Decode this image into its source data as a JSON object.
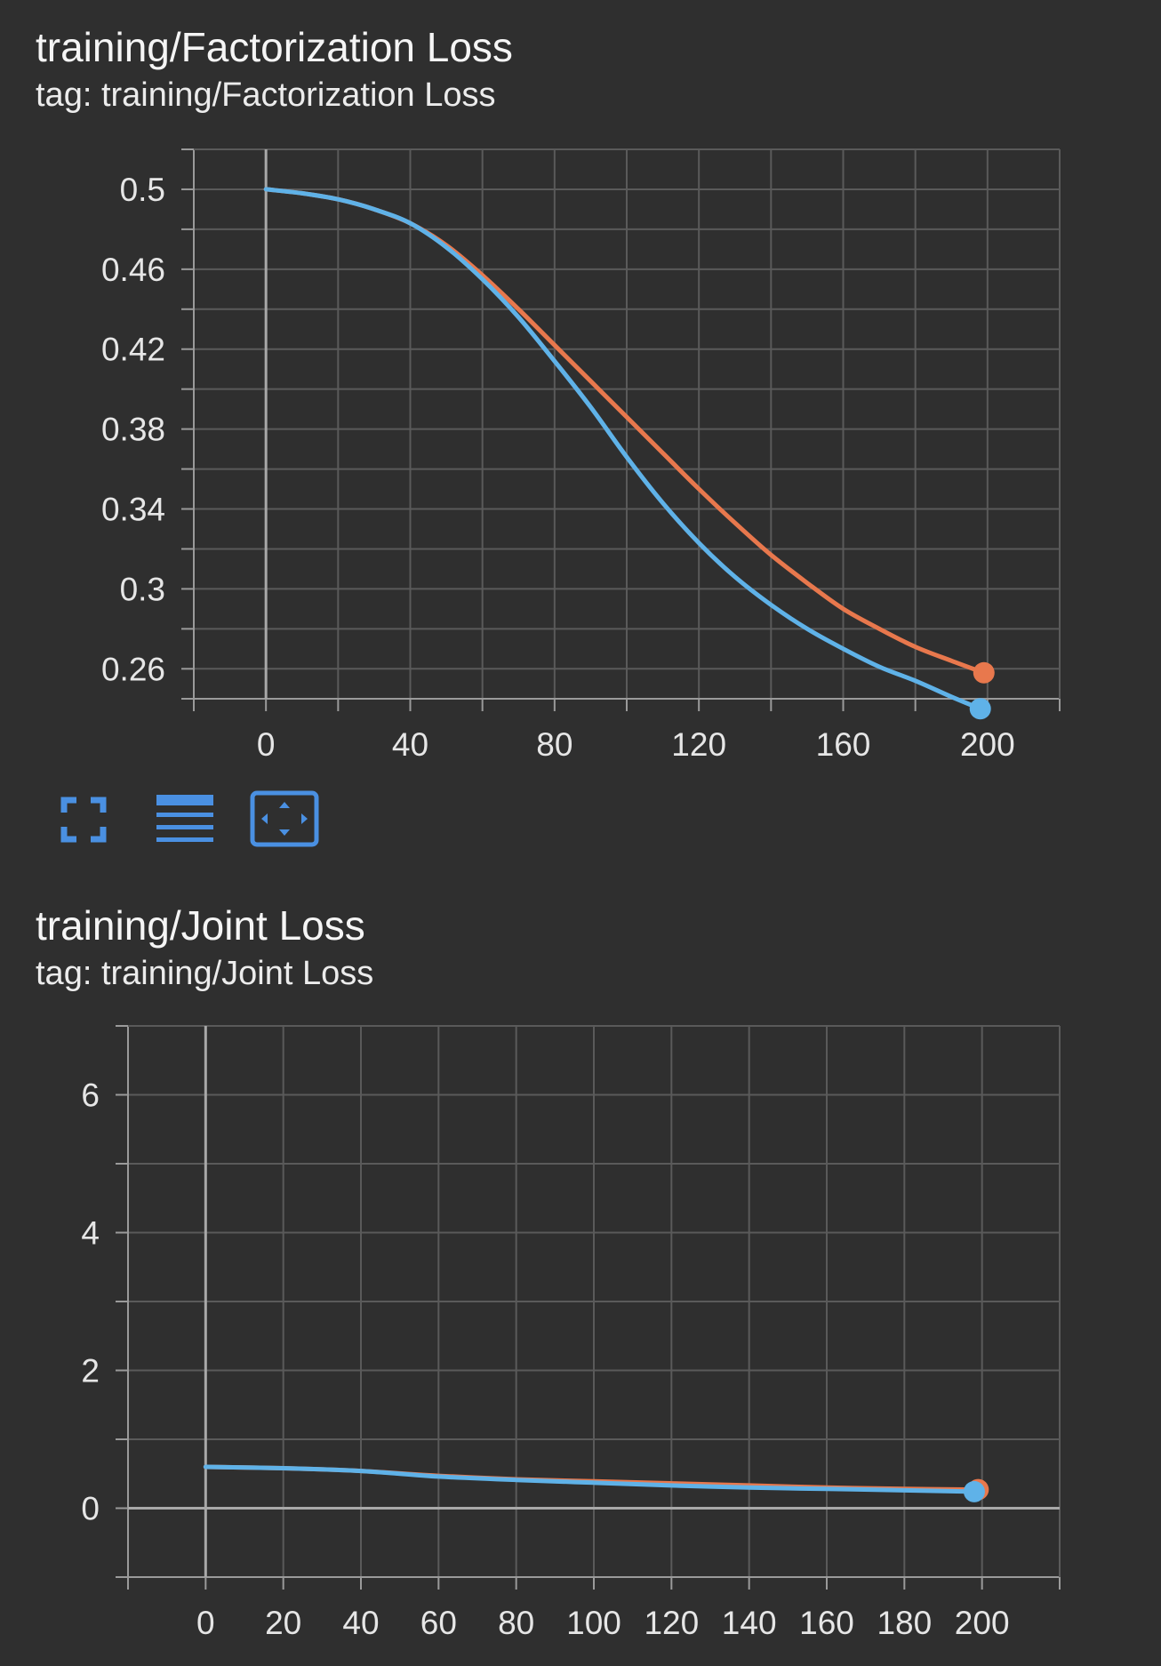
{
  "charts": {
    "factorization": {
      "title": "training/Factorization Loss",
      "subtitle": "tag: training/Factorization Loss"
    },
    "joint": {
      "title": "training/Joint Loss",
      "subtitle": "tag: training/Joint Loss"
    }
  },
  "toolbar": {
    "fullscreen_icon": "fullscreen-icon",
    "data_table_icon": "data-table-icon",
    "fit_domain_icon": "fit-domain-icon"
  },
  "colors": {
    "background": "#2f2f2f",
    "grid": "#5a5a5a",
    "axis": "#9a9a9a",
    "tick_text": "#e6e6e6",
    "series_orange": "#e8784d",
    "series_blue": "#5fb2e8",
    "icon_blue": "#4a90e2"
  },
  "chart_data": [
    {
      "type": "line",
      "title": "training/Factorization Loss",
      "subtitle": "tag: training/Factorization Loss",
      "xlabel": "",
      "ylabel": "",
      "xlim": [
        -20,
        220
      ],
      "ylim": [
        0.245,
        0.52
      ],
      "x_ticks": [
        0,
        40,
        80,
        120,
        160,
        200
      ],
      "y_ticks": [
        0.5,
        0.46,
        0.42,
        0.38,
        0.34,
        0.3,
        0.26
      ],
      "y_tick_labels": [
        "0.5",
        "0.46",
        "0.42",
        "0.38",
        "0.34",
        "0.3",
        "0.26"
      ],
      "grid": true,
      "series": [
        {
          "color": "#e8784d",
          "x": [
            0,
            10,
            20,
            30,
            40,
            50,
            60,
            70,
            80,
            90,
            100,
            110,
            120,
            130,
            140,
            150,
            160,
            170,
            180,
            190,
            199
          ],
          "y": [
            0.5,
            0.498,
            0.495,
            0.49,
            0.483,
            0.472,
            0.457,
            0.44,
            0.422,
            0.404,
            0.386,
            0.368,
            0.35,
            0.333,
            0.317,
            0.303,
            0.29,
            0.28,
            0.271,
            0.264,
            0.258
          ]
        },
        {
          "color": "#5fb2e8",
          "x": [
            0,
            10,
            20,
            30,
            40,
            50,
            60,
            70,
            80,
            90,
            100,
            110,
            120,
            130,
            140,
            150,
            160,
            170,
            180,
            190,
            198
          ],
          "y": [
            0.5,
            0.498,
            0.495,
            0.49,
            0.483,
            0.471,
            0.455,
            0.436,
            0.414,
            0.391,
            0.366,
            0.343,
            0.323,
            0.306,
            0.292,
            0.28,
            0.27,
            0.261,
            0.254,
            0.246,
            0.24
          ]
        }
      ]
    },
    {
      "type": "line",
      "title": "training/Joint Loss",
      "subtitle": "tag: training/Joint Loss",
      "xlabel": "",
      "ylabel": "",
      "xlim": [
        -20,
        220
      ],
      "ylim": [
        -1,
        7
      ],
      "x_ticks": [
        0,
        20,
        40,
        60,
        80,
        100,
        120,
        140,
        160,
        180,
        200
      ],
      "y_ticks": [
        0,
        2,
        4,
        6
      ],
      "y_tick_labels": [
        "0",
        "2",
        "4",
        "6"
      ],
      "grid": true,
      "series": [
        {
          "color": "#e8784d",
          "x": [
            0,
            20,
            40,
            60,
            80,
            100,
            120,
            140,
            160,
            180,
            199
          ],
          "y": [
            0.6,
            0.58,
            0.54,
            0.47,
            0.42,
            0.39,
            0.36,
            0.33,
            0.3,
            0.28,
            0.27
          ]
        },
        {
          "color": "#5fb2e8",
          "x": [
            0,
            20,
            40,
            60,
            80,
            100,
            120,
            140,
            160,
            180,
            198
          ],
          "y": [
            0.6,
            0.58,
            0.54,
            0.46,
            0.41,
            0.37,
            0.33,
            0.3,
            0.28,
            0.26,
            0.24
          ]
        }
      ]
    }
  ]
}
